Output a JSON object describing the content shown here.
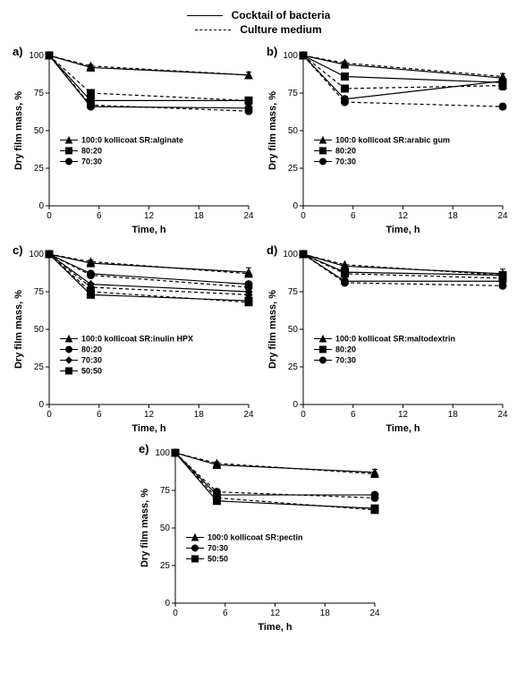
{
  "top_legend": [
    {
      "label": "Cocktail of bacteria",
      "dash": "solid"
    },
    {
      "label": "Culture medium",
      "dash": "dashed"
    }
  ],
  "global": {
    "xlabel": "Time, h",
    "ylabel": "Dry film mass, %",
    "xlim": [
      0,
      24
    ],
    "ylim": [
      0,
      100
    ],
    "xticks": [
      0,
      6,
      12,
      18,
      24
    ],
    "yticks": [
      0,
      25,
      50,
      75,
      100
    ],
    "colors": {
      "line": "#000000",
      "bg": "#ffffff"
    },
    "font_family": "Arial",
    "marker_size": 4,
    "line_width": 1.2,
    "err_cap": 3
  },
  "panels": [
    {
      "id": "a",
      "label": "a)",
      "legend_title": "100:0 kollicoat SR:alginate",
      "legend_items": [
        {
          "marker": "triangle",
          "label": "100:0 kollicoat SR:alginate"
        },
        {
          "marker": "square",
          "label": "80:20"
        },
        {
          "marker": "circle",
          "label": "70:30"
        }
      ],
      "x": [
        0,
        5,
        24
      ],
      "series": [
        {
          "marker": "triangle",
          "dash": "solid",
          "y": [
            100,
            92,
            87
          ],
          "err": [
            0,
            2,
            2
          ]
        },
        {
          "marker": "triangle",
          "dash": "dashed",
          "y": [
            100,
            93,
            87
          ],
          "err": [
            0,
            0,
            0
          ]
        },
        {
          "marker": "square",
          "dash": "solid",
          "y": [
            100,
            70,
            70
          ],
          "err": [
            0,
            0,
            0
          ]
        },
        {
          "marker": "square",
          "dash": "dashed",
          "y": [
            100,
            75,
            70
          ],
          "err": [
            0,
            0,
            0
          ]
        },
        {
          "marker": "circle",
          "dash": "solid",
          "y": [
            100,
            66,
            65
          ],
          "err": [
            0,
            0,
            0
          ]
        },
        {
          "marker": "circle",
          "dash": "dashed",
          "y": [
            100,
            67,
            63
          ],
          "err": [
            0,
            0,
            0
          ]
        }
      ]
    },
    {
      "id": "b",
      "label": "b)",
      "legend_items": [
        {
          "marker": "triangle",
          "label": "100:0 kollicoat SR:arabic gum"
        },
        {
          "marker": "square",
          "label": "80:20"
        },
        {
          "marker": "circle",
          "label": "70:30"
        }
      ],
      "x": [
        0,
        5,
        24
      ],
      "series": [
        {
          "marker": "triangle",
          "dash": "solid",
          "y": [
            100,
            94,
            85
          ],
          "err": [
            0,
            2,
            3
          ]
        },
        {
          "marker": "triangle",
          "dash": "dashed",
          "y": [
            100,
            95,
            86
          ],
          "err": [
            0,
            0,
            0
          ]
        },
        {
          "marker": "square",
          "dash": "solid",
          "y": [
            100,
            86,
            82
          ],
          "err": [
            0,
            0,
            0
          ]
        },
        {
          "marker": "square",
          "dash": "dashed",
          "y": [
            100,
            78,
            80
          ],
          "err": [
            0,
            0,
            3
          ]
        },
        {
          "marker": "circle",
          "dash": "solid",
          "y": [
            100,
            71,
            83
          ],
          "err": [
            0,
            2,
            0
          ]
        },
        {
          "marker": "circle",
          "dash": "dashed",
          "y": [
            100,
            69,
            66
          ],
          "err": [
            0,
            0,
            2
          ]
        }
      ]
    },
    {
      "id": "c",
      "label": "c)",
      "legend_items": [
        {
          "marker": "triangle",
          "label": "100:0 kollicoat SR:inulin HPX"
        },
        {
          "marker": "circle",
          "label": "80:20"
        },
        {
          "marker": "diamond",
          "label": "70:30"
        },
        {
          "marker": "square",
          "label": "50:50"
        }
      ],
      "x": [
        0,
        5,
        24
      ],
      "series": [
        {
          "marker": "triangle",
          "dash": "solid",
          "y": [
            100,
            94,
            88
          ],
          "err": [
            0,
            2,
            3
          ]
        },
        {
          "marker": "triangle",
          "dash": "dashed",
          "y": [
            100,
            95,
            87
          ],
          "err": [
            0,
            0,
            0
          ]
        },
        {
          "marker": "circle",
          "dash": "solid",
          "y": [
            100,
            87,
            80
          ],
          "err": [
            0,
            0,
            0
          ]
        },
        {
          "marker": "circle",
          "dash": "dashed",
          "y": [
            100,
            86,
            78
          ],
          "err": [
            0,
            0,
            0
          ]
        },
        {
          "marker": "diamond",
          "dash": "solid",
          "y": [
            100,
            80,
            75
          ],
          "err": [
            0,
            0,
            0
          ]
        },
        {
          "marker": "diamond",
          "dash": "dashed",
          "y": [
            100,
            78,
            73
          ],
          "err": [
            0,
            0,
            0
          ]
        },
        {
          "marker": "square",
          "dash": "solid",
          "y": [
            100,
            73,
            69
          ],
          "err": [
            0,
            0,
            0
          ]
        },
        {
          "marker": "square",
          "dash": "dashed",
          "y": [
            100,
            75,
            68
          ],
          "err": [
            0,
            0,
            0
          ]
        }
      ]
    },
    {
      "id": "d",
      "label": "d)",
      "legend_items": [
        {
          "marker": "triangle",
          "label": "100:0 kollicoat SR:maltodextrin"
        },
        {
          "marker": "square",
          "label": "80:20"
        },
        {
          "marker": "circle",
          "label": "70:30"
        }
      ],
      "x": [
        0,
        5,
        24
      ],
      "series": [
        {
          "marker": "triangle",
          "dash": "solid",
          "y": [
            100,
            92,
            87
          ],
          "err": [
            0,
            0,
            3
          ]
        },
        {
          "marker": "triangle",
          "dash": "dashed",
          "y": [
            100,
            93,
            86
          ],
          "err": [
            0,
            0,
            0
          ]
        },
        {
          "marker": "square",
          "dash": "solid",
          "y": [
            100,
            88,
            86
          ],
          "err": [
            0,
            0,
            0
          ]
        },
        {
          "marker": "square",
          "dash": "dashed",
          "y": [
            100,
            87,
            84
          ],
          "err": [
            0,
            0,
            0
          ]
        },
        {
          "marker": "circle",
          "dash": "solid",
          "y": [
            100,
            82,
            82
          ],
          "err": [
            0,
            0,
            0
          ]
        },
        {
          "marker": "circle",
          "dash": "dashed",
          "y": [
            100,
            81,
            79
          ],
          "err": [
            0,
            0,
            0
          ]
        }
      ]
    },
    {
      "id": "e",
      "label": "e)",
      "legend_items": [
        {
          "marker": "triangle",
          "label": "100:0 kollicoat SR:pectin"
        },
        {
          "marker": "circle",
          "label": "70:30"
        },
        {
          "marker": "square",
          "label": "50:50"
        }
      ],
      "x": [
        0,
        5,
        24
      ],
      "series": [
        {
          "marker": "triangle",
          "dash": "solid",
          "y": [
            100,
            92,
            87
          ],
          "err": [
            0,
            2,
            2
          ]
        },
        {
          "marker": "triangle",
          "dash": "dashed",
          "y": [
            100,
            93,
            86
          ],
          "err": [
            0,
            0,
            0
          ]
        },
        {
          "marker": "circle",
          "dash": "solid",
          "y": [
            100,
            72,
            72
          ],
          "err": [
            0,
            0,
            0
          ]
        },
        {
          "marker": "circle",
          "dash": "dashed",
          "y": [
            100,
            74,
            70
          ],
          "err": [
            0,
            0,
            0
          ]
        },
        {
          "marker": "square",
          "dash": "solid",
          "y": [
            100,
            68,
            63
          ],
          "err": [
            0,
            0,
            0
          ]
        },
        {
          "marker": "square",
          "dash": "dashed",
          "y": [
            100,
            70,
            62
          ],
          "err": [
            0,
            0,
            0
          ]
        }
      ]
    }
  ]
}
